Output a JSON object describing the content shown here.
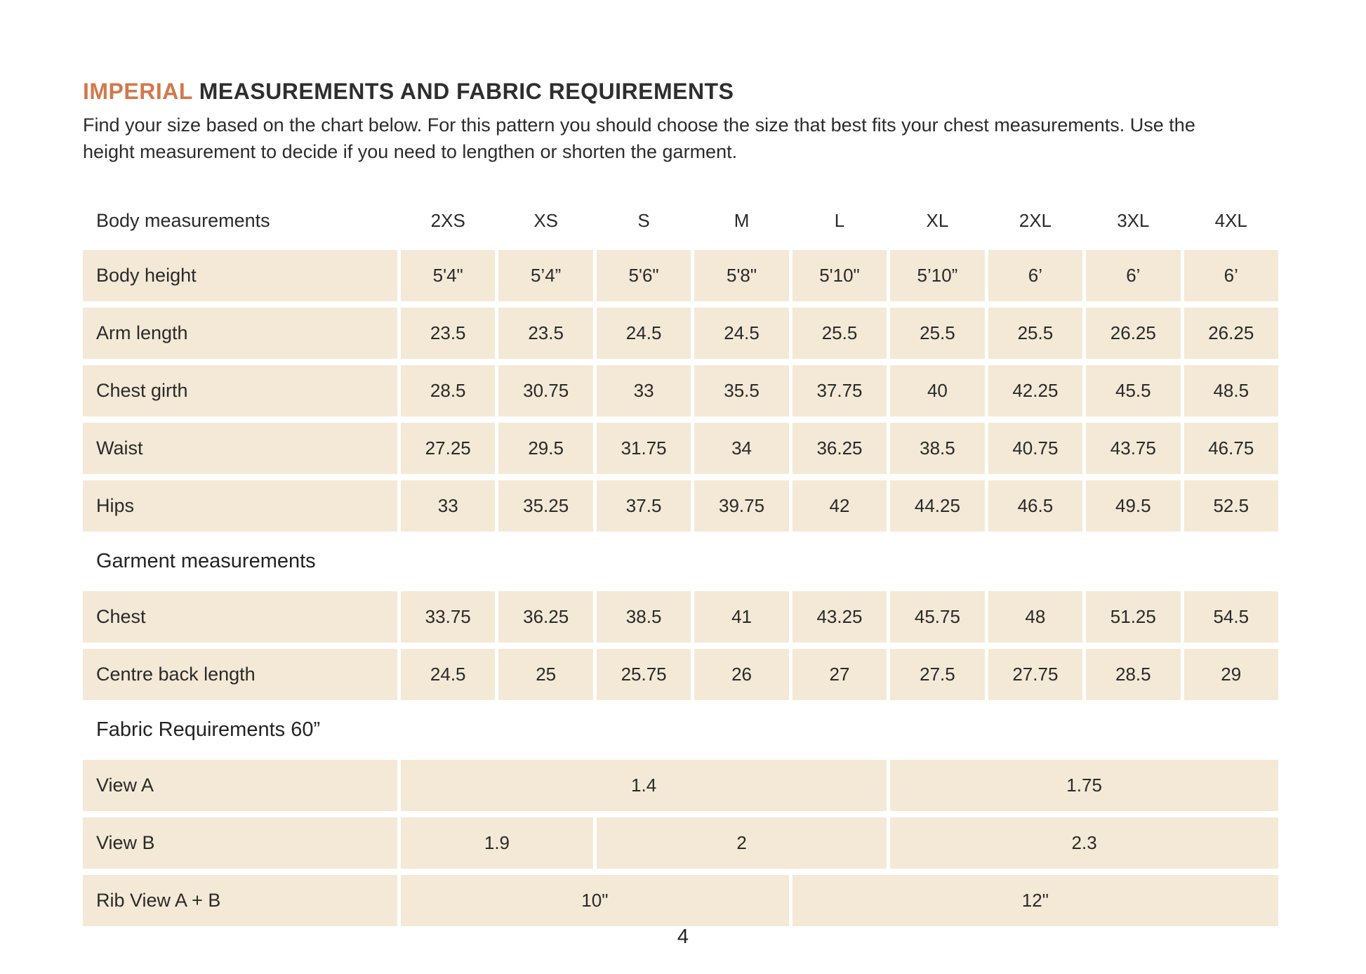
{
  "page": {
    "title_accent": "IMPERIAL",
    "title_rest": " MEASUREMENTS AND FABRIC REQUIREMENTS",
    "intro": "Find your size based on the chart below. For this pattern you should choose the size that best fits your chest measurements. Use the height measurement to decide if you need to lengthen or shorten the garment.",
    "page_number": "4"
  },
  "colors": {
    "accent_orange": "#d2784c",
    "cell_beige": "#f3e9d6",
    "text_dark": "#2b2b2b"
  },
  "size_chart": {
    "header_label": "Body measurements",
    "sizes": [
      "2XS",
      "XS",
      "S",
      "M",
      "L",
      "XL",
      "2XL",
      "3XL",
      "4XL"
    ],
    "body_rows": [
      {
        "label": "Body height",
        "values": [
          "5'4\"",
          "5’4”",
          "5'6\"",
          "5'8\"",
          "5'10\"",
          "5’10”",
          "6’",
          "6’",
          "6’"
        ]
      },
      {
        "label": "Arm length",
        "values": [
          "23.5",
          "23.5",
          "24.5",
          "24.5",
          "25.5",
          "25.5",
          "25.5",
          "26.25",
          "26.25"
        ]
      },
      {
        "label": "Chest girth",
        "values": [
          "28.5",
          "30.75",
          "33",
          "35.5",
          "37.75",
          "40",
          "42.25",
          "45.5",
          "48.5"
        ]
      },
      {
        "label": "Waist",
        "values": [
          "27.25",
          "29.5",
          "31.75",
          "34",
          "36.25",
          "38.5",
          "40.75",
          "43.75",
          "46.75"
        ]
      },
      {
        "label": "Hips",
        "values": [
          "33",
          "35.25",
          "37.5",
          "39.75",
          "42",
          "44.25",
          "46.5",
          "49.5",
          "52.5"
        ]
      }
    ],
    "garment_section_label": "Garment measurements",
    "garment_rows": [
      {
        "label": "Chest",
        "values": [
          "33.75",
          "36.25",
          "38.5",
          "41",
          "43.25",
          "45.75",
          "48",
          "51.25",
          "54.5"
        ]
      },
      {
        "label": "Centre back length",
        "values": [
          "24.5",
          "25",
          "25.75",
          "26",
          "27",
          "27.5",
          "27.75",
          "28.5",
          "29"
        ]
      }
    ],
    "fabric_section_label": "Fabric Requirements 60”",
    "fabric_rows": [
      {
        "label": "View A",
        "cells": [
          {
            "span": 5,
            "value": "1.4"
          },
          {
            "span": 4,
            "value": "1.75"
          }
        ]
      },
      {
        "label": "View B",
        "cells": [
          {
            "span": 2,
            "value": "1.9"
          },
          {
            "span": 3,
            "value": "2"
          },
          {
            "span": 4,
            "value": "2.3"
          }
        ]
      },
      {
        "label": "Rib View A + B",
        "cells": [
          {
            "span": 4,
            "value": "10\""
          },
          {
            "span": 5,
            "value": "12\""
          }
        ]
      }
    ]
  }
}
